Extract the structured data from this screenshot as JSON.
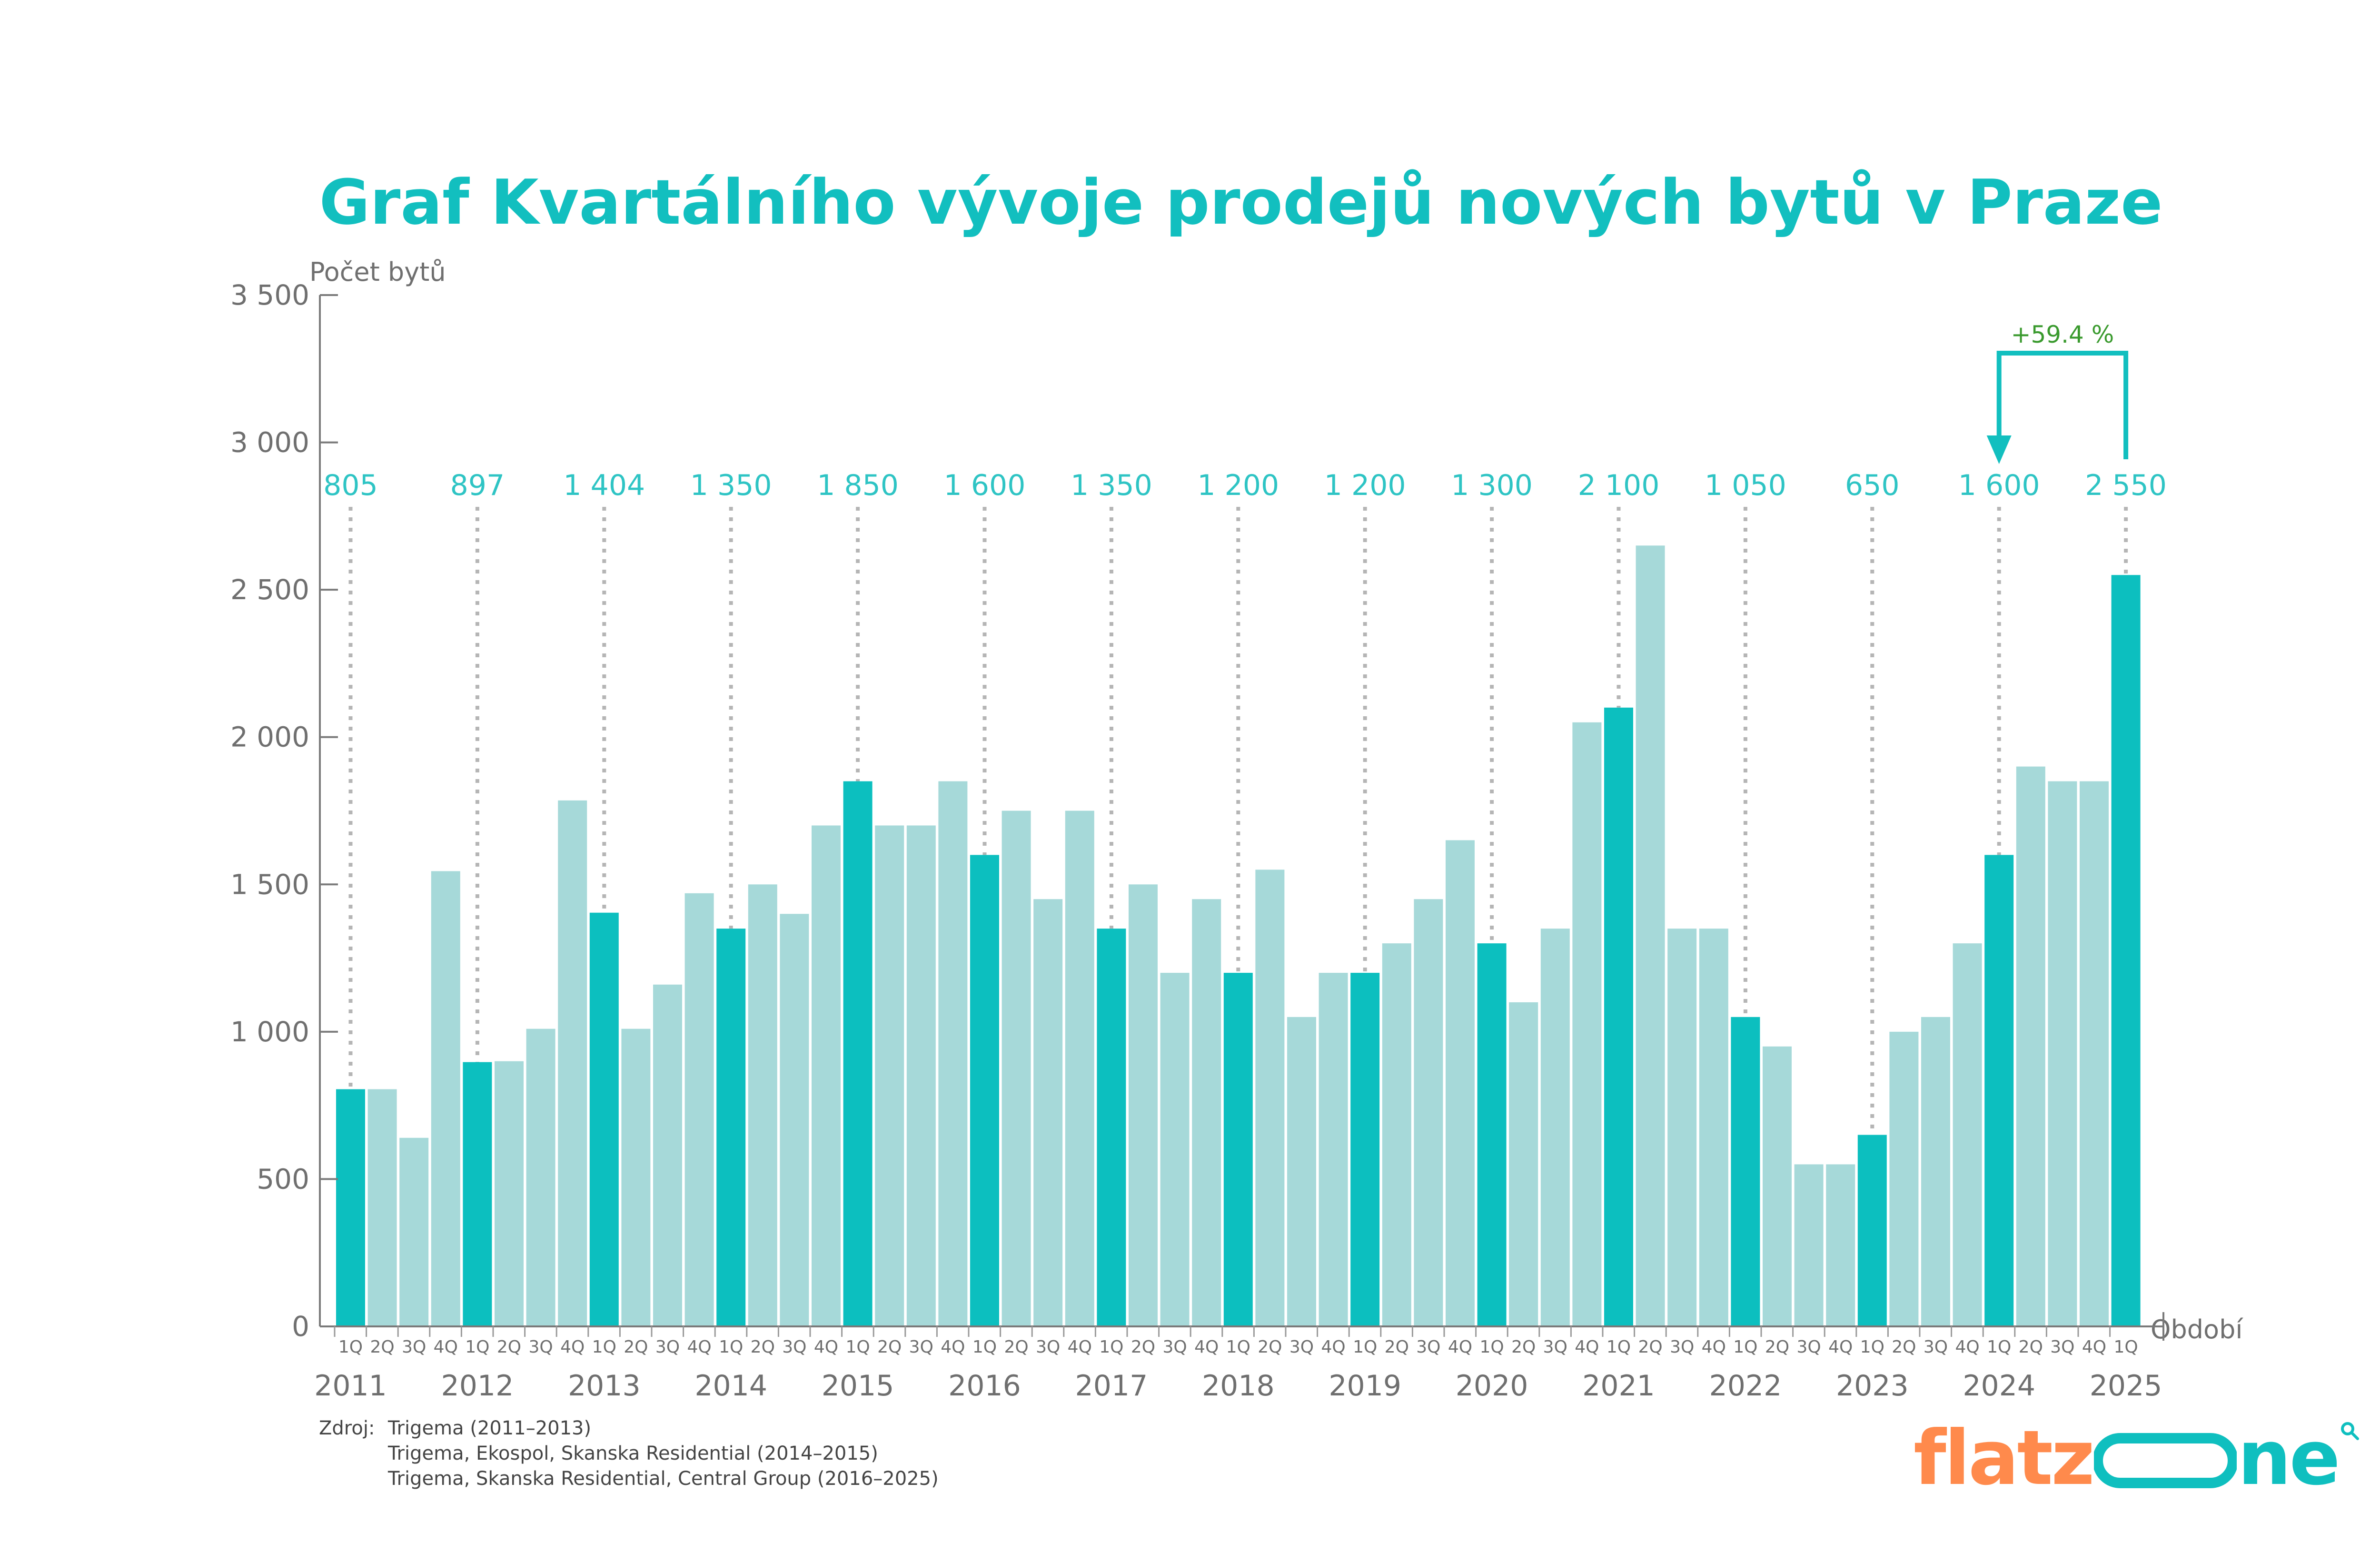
{
  "chart_data": {
    "type": "bar",
    "title": "Graf Kvartálního vývoje prodejů nových bytů v Praze",
    "ylabel": "Počet bytů",
    "xlabel": "Období",
    "ylim": [
      0,
      3500
    ],
    "ytick_values": [
      0,
      500,
      1000,
      1500,
      2000,
      2500,
      3000,
      3500
    ],
    "ytick_labels": [
      "0",
      "500",
      "1 000",
      "1 500",
      "2 000",
      "2 500",
      "3 000",
      "3 500"
    ],
    "quarter_labels": [
      "1Q",
      "2Q",
      "3Q",
      "4Q"
    ],
    "years": [
      "2011",
      "2012",
      "2013",
      "2014",
      "2015",
      "2016",
      "2017",
      "2018",
      "2019",
      "2020",
      "2021",
      "2022",
      "2023",
      "2024",
      "2025"
    ],
    "values": [
      805,
      805,
      640,
      1545,
      897,
      900,
      1010,
      1785,
      1404,
      1010,
      1160,
      1470,
      1350,
      1500,
      1400,
      1700,
      1850,
      1700,
      1700,
      1850,
      1600,
      1750,
      1450,
      1750,
      1350,
      1500,
      1200,
      1450,
      1200,
      1550,
      1050,
      1200,
      1200,
      1300,
      1450,
      1650,
      1300,
      1100,
      1350,
      2050,
      2100,
      2650,
      1350,
      1350,
      1050,
      950,
      550,
      550,
      650,
      1000,
      1050,
      1300,
      1600,
      1900,
      1850,
      1850,
      2550
    ],
    "q1_labels": [
      "805",
      "897",
      "1 404",
      "1 350",
      "1 850",
      "1 600",
      "1 350",
      "1 200",
      "1 200",
      "1 300",
      "2 100",
      "1 050",
      "650",
      "1 600",
      "2 550"
    ],
    "annotation": {
      "text": "+59.4 %",
      "from_year": "2024",
      "to_year": "2025"
    },
    "grid": false,
    "colors": {
      "title": "#12bfbf",
      "q1_bar": "#0cbfbf",
      "other_bar": "#a6d9d9",
      "q1_label": "#2ec4c4",
      "annotation": "#3a9a2e",
      "arrow": "#12bfbf",
      "dotted_line": "#b5b5b5",
      "axis": "#7a7a7a"
    }
  },
  "source": {
    "label": "Zdroj:",
    "lines": [
      "Trigema (2011–2013)",
      "Trigema, Ekospol, Skanska Residential (2014–2015)",
      "Trigema, Skanska Residential, Central Group (2016–2025)"
    ]
  },
  "logo": {
    "part1": "flatz",
    "part2": "ne",
    "color1": "#ff8a4c",
    "color2": "#0fbfbf"
  }
}
